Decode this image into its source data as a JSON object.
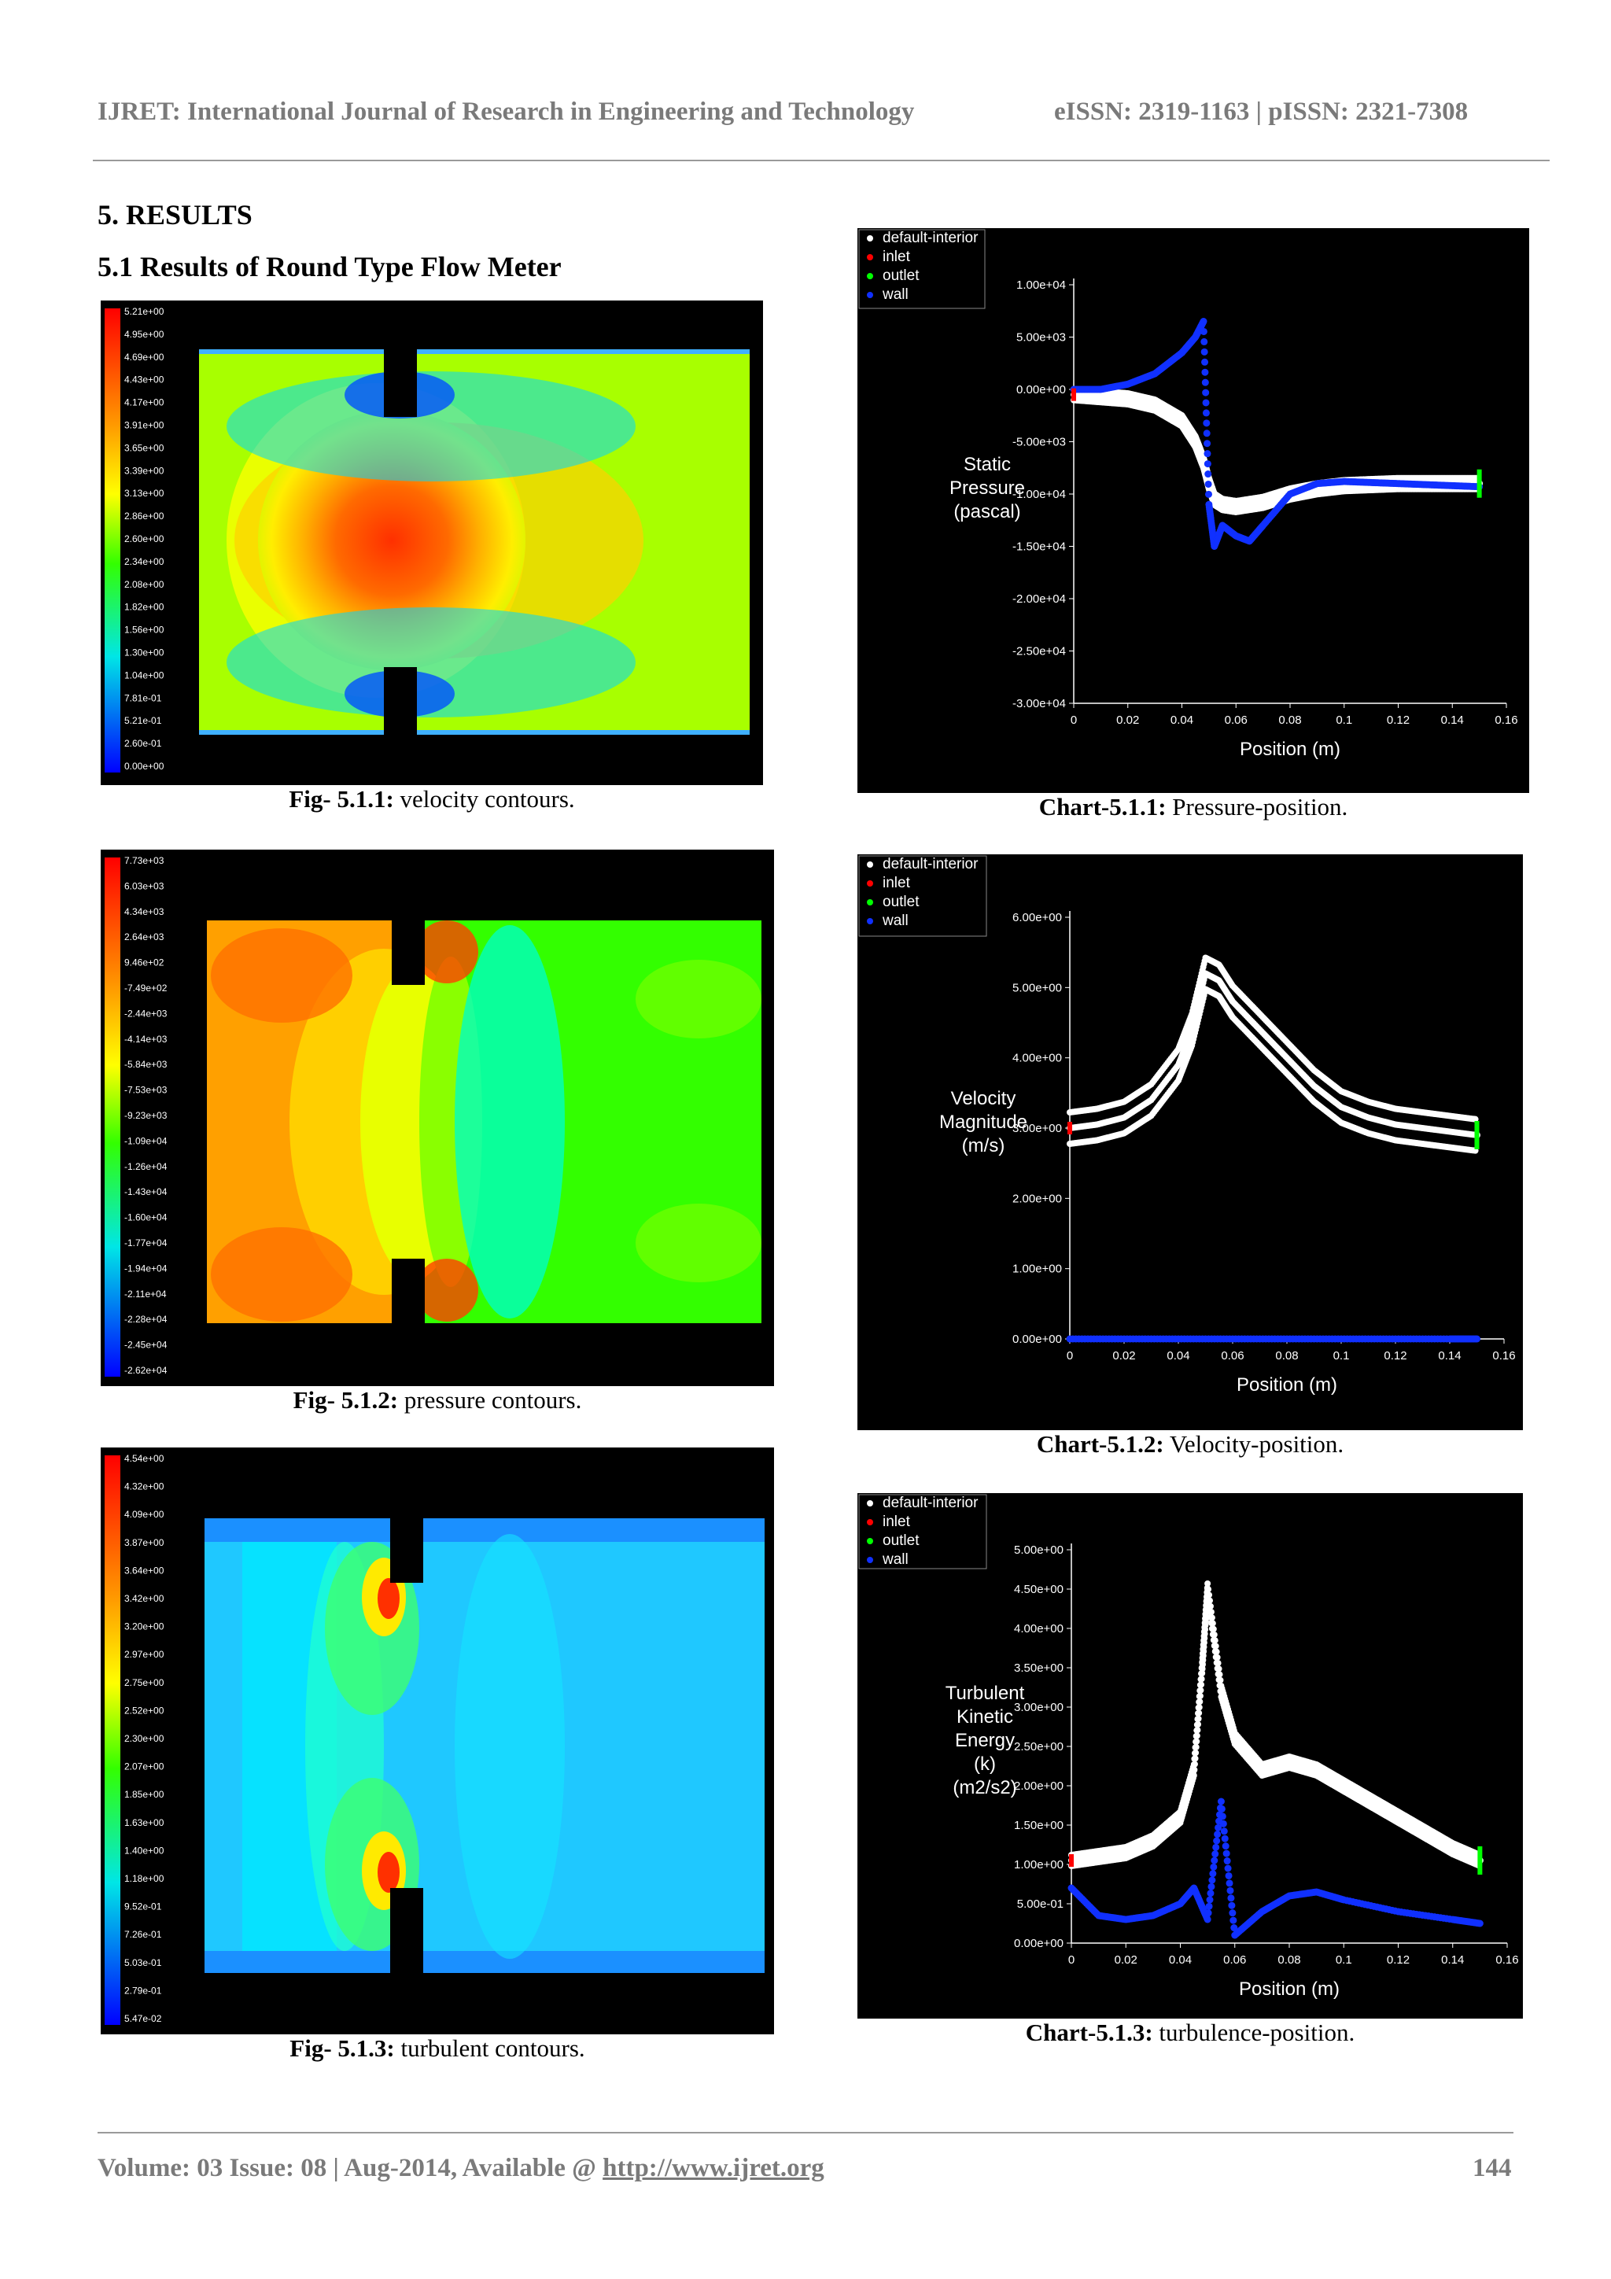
{
  "header": {
    "journal": "IJRET: International Journal of Research in Engineering and Technology",
    "issn": "eISSN: 2319-1163 | pISSN: 2321-7308"
  },
  "section": {
    "title": "5. RESULTS",
    "subtitle": "5.1 Results of Round Type Flow Meter"
  },
  "figures": [
    {
      "label": "Fig- 5.1.1:",
      "caption": " velocity contours.",
      "colorbar_labels": [
        "5.21e+00",
        "4.95e+00",
        "4.69e+00",
        "4.43e+00",
        "4.17e+00",
        "3.91e+00",
        "3.65e+00",
        "3.39e+00",
        "3.13e+00",
        "2.86e+00",
        "2.60e+00",
        "2.34e+00",
        "2.08e+00",
        "1.82e+00",
        "1.56e+00",
        "1.30e+00",
        "1.04e+00",
        "7.81e-01",
        "5.21e-01",
        "2.60e-01",
        "0.00e+00"
      ]
    },
    {
      "label": "Fig- 5.1.2:",
      "caption": " pressure contours.",
      "colorbar_labels": [
        "7.73e+03",
        "6.03e+03",
        "4.34e+03",
        "2.64e+03",
        "9.46e+02",
        "-7.49e+02",
        "-2.44e+03",
        "-4.14e+03",
        "-5.84e+03",
        "-7.53e+03",
        "-9.23e+03",
        "-1.09e+04",
        "-1.26e+04",
        "-1.43e+04",
        "-1.60e+04",
        "-1.77e+04",
        "-1.94e+04",
        "-2.11e+04",
        "-2.28e+04",
        "-2.45e+04",
        "-2.62e+04"
      ]
    },
    {
      "label": "Fig- 5.1.3:",
      "caption": " turbulent contours.",
      "colorbar_labels": [
        "4.54e+00",
        "4.32e+00",
        "4.09e+00",
        "3.87e+00",
        "3.64e+00",
        "3.42e+00",
        "3.20e+00",
        "2.97e+00",
        "2.75e+00",
        "2.52e+00",
        "2.30e+00",
        "2.07e+00",
        "1.85e+00",
        "1.63e+00",
        "1.40e+00",
        "1.18e+00",
        "9.52e-01",
        "7.26e-01",
        "5.03e-01",
        "2.79e-01",
        "5.47e-02"
      ]
    }
  ],
  "legend": [
    "default-interior",
    "inlet",
    "outlet",
    "wall"
  ],
  "legend_colors": [
    "#ffffff",
    "#ff0000",
    "#00ff00",
    "#1030ff"
  ],
  "charts_captions": [
    {
      "label": "Chart-5.1.1:",
      "caption": " Pressure-position."
    },
    {
      "label": "Chart-5.1.2:",
      "caption": " Velocity-position."
    },
    {
      "label": "Chart-5.1.3:",
      "caption": " turbulence-position."
    }
  ],
  "chart_data": [
    {
      "type": "scatter",
      "title": "",
      "xlabel": "Position (m)",
      "ylabel": [
        "Static",
        "Pressure",
        "(pascal)"
      ],
      "xlim": [
        0,
        0.16
      ],
      "ylim": [
        -30000,
        10000
      ],
      "xticks": [
        "0",
        "0.02",
        "0.04",
        "0.06",
        "0.08",
        "0.1",
        "0.12",
        "0.14",
        "0.16"
      ],
      "yticks": [
        "1.00e+04",
        "5.00e+03",
        "0.00e+00",
        "-5.00e+03",
        "-1.00e+04",
        "-1.50e+04",
        "-2.00e+04",
        "-2.50e+04",
        "-3.00e+04"
      ],
      "series": [
        {
          "name": "default-interior",
          "x": [
            0,
            0.01,
            0.02,
            0.03,
            0.04,
            0.045,
            0.048,
            0.05,
            0.052,
            0.055,
            0.06,
            0.07,
            0.08,
            0.09,
            0.1,
            0.11,
            0.12,
            0.13,
            0.14,
            0.15
          ],
          "y": [
            -500,
            -700,
            -900,
            -1500,
            -3000,
            -5000,
            -7000,
            -9000,
            -10500,
            -11000,
            -11200,
            -10800,
            -10000,
            -9500,
            -9200,
            -9100,
            -9000,
            -9000,
            -9000,
            -9000
          ]
        },
        {
          "name": "wall",
          "x": [
            0,
            0.01,
            0.02,
            0.03,
            0.04,
            0.045,
            0.048,
            0.05,
            0.052,
            0.055,
            0.06,
            0.065,
            0.07,
            0.08,
            0.09,
            0.1,
            0.11,
            0.12,
            0.13,
            0.14,
            0.15
          ],
          "y": [
            0,
            0,
            500,
            1500,
            3500,
            5000,
            6500,
            -11000,
            -15000,
            -13000,
            -14000,
            -14500,
            -13000,
            -10000,
            -9000,
            -8800,
            -8900,
            -9000,
            -9100,
            -9200,
            -9300
          ]
        }
      ]
    },
    {
      "type": "scatter",
      "title": "",
      "xlabel": "Position (m)",
      "ylabel": [
        "Velocity",
        "Magnitude",
        "(m/s)"
      ],
      "xlim": [
        0,
        0.16
      ],
      "ylim": [
        0,
        6
      ],
      "xticks": [
        "0",
        "0.02",
        "0.04",
        "0.06",
        "0.08",
        "0.1",
        "0.12",
        "0.14",
        "0.16"
      ],
      "yticks": [
        "6.00e+00",
        "5.00e+00",
        "4.00e+00",
        "3.00e+00",
        "2.00e+00",
        "1.00e+00",
        "0.00e+00"
      ],
      "series": [
        {
          "name": "default-interior",
          "x": [
            0,
            0.01,
            0.02,
            0.03,
            0.04,
            0.045,
            0.05,
            0.055,
            0.06,
            0.07,
            0.08,
            0.09,
            0.1,
            0.11,
            0.12,
            0.13,
            0.14,
            0.15
          ],
          "y": [
            3.0,
            3.05,
            3.15,
            3.4,
            3.9,
            4.4,
            5.2,
            5.1,
            4.8,
            4.4,
            4.0,
            3.6,
            3.3,
            3.15,
            3.05,
            3.0,
            2.95,
            2.9
          ]
        },
        {
          "name": "wall",
          "x": [
            0,
            0.02,
            0.04,
            0.06,
            0.08,
            0.1,
            0.12,
            0.14,
            0.15
          ],
          "y": [
            0,
            0,
            0,
            0,
            0,
            0,
            0,
            0,
            0
          ]
        }
      ]
    },
    {
      "type": "scatter",
      "title": "",
      "xlabel": "Position (m)",
      "ylabel": [
        "Turbulent",
        "Kinetic",
        "Energy",
        "(k)",
        "(m2/s2)"
      ],
      "xlim": [
        0,
        0.16
      ],
      "ylim": [
        0,
        5
      ],
      "xticks": [
        "0",
        "0.02",
        "0.04",
        "0.06",
        "0.08",
        "0.1",
        "0.12",
        "0.14",
        "0.16"
      ],
      "yticks": [
        "5.00e+00",
        "4.50e+00",
        "4.00e+00",
        "3.50e+00",
        "3.00e+00",
        "2.50e+00",
        "2.00e+00",
        "1.50e+00",
        "1.00e+00",
        "5.00e-01",
        "0.00e+00"
      ],
      "series": [
        {
          "name": "default-interior",
          "x": [
            0,
            0.01,
            0.02,
            0.03,
            0.04,
            0.045,
            0.048,
            0.05,
            0.055,
            0.06,
            0.07,
            0.08,
            0.09,
            0.1,
            0.11,
            0.12,
            0.13,
            0.14,
            0.15
          ],
          "y": [
            1.05,
            1.1,
            1.15,
            1.3,
            1.6,
            2.2,
            3.5,
            4.5,
            3.2,
            2.6,
            2.2,
            2.3,
            2.2,
            2.0,
            1.8,
            1.6,
            1.4,
            1.2,
            1.05
          ]
        },
        {
          "name": "wall",
          "x": [
            0,
            0.01,
            0.02,
            0.03,
            0.04,
            0.045,
            0.05,
            0.055,
            0.06,
            0.07,
            0.08,
            0.09,
            0.1,
            0.12,
            0.14,
            0.15
          ],
          "y": [
            0.7,
            0.35,
            0.3,
            0.35,
            0.5,
            0.7,
            0.3,
            1.8,
            0.1,
            0.4,
            0.6,
            0.65,
            0.55,
            0.4,
            0.3,
            0.25
          ]
        }
      ]
    }
  ]
}
